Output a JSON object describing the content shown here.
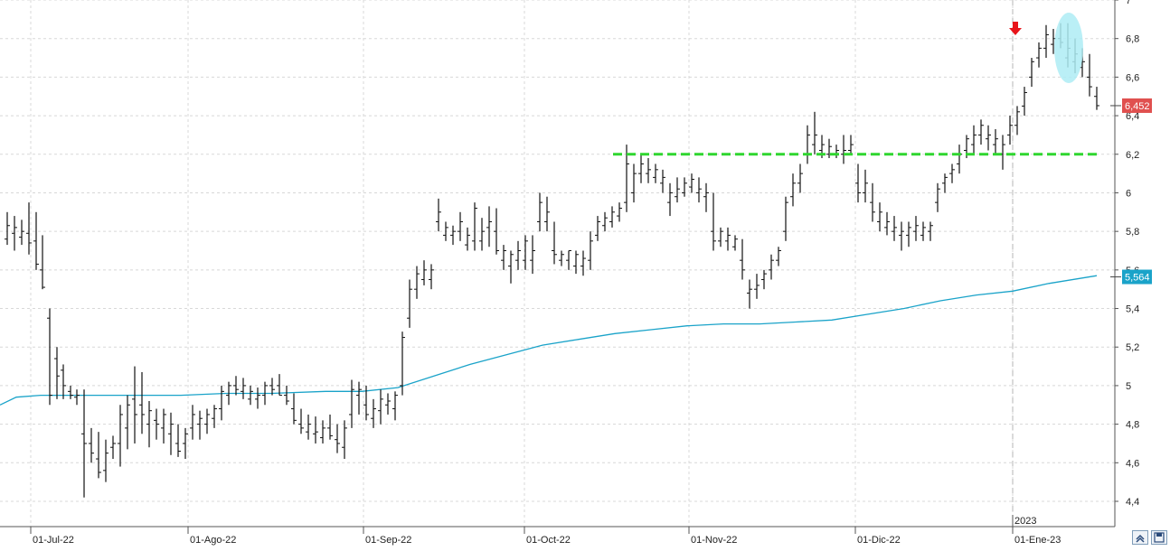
{
  "chart_data": {
    "type": "ohlc",
    "year_marker": "2023",
    "x_tick_labels": [
      "01-Jul-22",
      "01-Ago-22",
      "01-Sep-22",
      "01-Oct-22",
      "01-Nov-22",
      "01-Dic-22",
      "01-Ene-23"
    ],
    "y_tick_labels": [
      "4,4",
      "4,6",
      "4,8",
      "5",
      "5,2",
      "5,4",
      "5,6",
      "5,8",
      "6",
      "6,2",
      "6,4",
      "6,6",
      "6,8",
      "7"
    ],
    "ylim": [
      4.3,
      7.0
    ],
    "grid": true,
    "last_price": {
      "label": "6,452",
      "value": 6.452,
      "color": "#e0504f"
    },
    "moving_average": {
      "label": "5,564",
      "value": 5.564,
      "color": "#1aa3c9",
      "points": [
        [
          0,
          4.9
        ],
        [
          18,
          4.94
        ],
        [
          45,
          4.95
        ],
        [
          90,
          4.95
        ],
        [
          140,
          4.95
        ],
        [
          200,
          4.95
        ],
        [
          250,
          4.96
        ],
        [
          300,
          4.96
        ],
        [
          360,
          4.97
        ],
        [
          400,
          4.97
        ],
        [
          440,
          4.99
        ],
        [
          480,
          5.05
        ],
        [
          520,
          5.11
        ],
        [
          560,
          5.16
        ],
        [
          600,
          5.21
        ],
        [
          640,
          5.24
        ],
        [
          680,
          5.27
        ],
        [
          720,
          5.29
        ],
        [
          760,
          5.31
        ],
        [
          800,
          5.32
        ],
        [
          840,
          5.32
        ],
        [
          880,
          5.33
        ],
        [
          920,
          5.34
        ],
        [
          960,
          5.37
        ],
        [
          1000,
          5.4
        ],
        [
          1040,
          5.44
        ],
        [
          1080,
          5.47
        ],
        [
          1120,
          5.49
        ],
        [
          1160,
          5.53
        ],
        [
          1213,
          5.57
        ]
      ]
    },
    "resistance_line": {
      "value": 6.2,
      "x_start": 678,
      "x_end": 1214,
      "color": "#2fd62f"
    },
    "highlight_ellipse": {
      "color": "#aeecf5"
    },
    "marker_arrow": {
      "color": "#e8141a"
    },
    "bars": [
      [
        8,
        5.9,
        5.73,
        5.76,
        5.83
      ],
      [
        16,
        5.88,
        5.7,
        5.79,
        5.82
      ],
      [
        24,
        5.86,
        5.73,
        5.77,
        5.8
      ],
      [
        32,
        5.95,
        5.68,
        5.79,
        5.74
      ],
      [
        40,
        5.9,
        5.6,
        5.75,
        5.63
      ],
      [
        47,
        5.78,
        5.5,
        5.6,
        5.51
      ],
      [
        55,
        5.4,
        4.9,
        5.35,
        4.95
      ],
      [
        63,
        5.2,
        4.93,
        5.14,
        5.05
      ],
      [
        70,
        5.11,
        4.93,
        5.08,
        5.0
      ],
      [
        78,
        5.0,
        4.93,
        4.97,
        4.95
      ],
      [
        85,
        4.98,
        4.9,
        4.94,
        4.95
      ],
      [
        93,
        4.98,
        4.42,
        4.75,
        4.7
      ],
      [
        101,
        4.78,
        4.6,
        4.7,
        4.65
      ],
      [
        109,
        4.76,
        4.52,
        4.62,
        4.55
      ],
      [
        117,
        4.72,
        4.5,
        4.56,
        4.65
      ],
      [
        125,
        4.74,
        4.62,
        4.68,
        4.7
      ],
      [
        133,
        4.9,
        4.58,
        4.7,
        4.85
      ],
      [
        141,
        4.95,
        4.67,
        4.78,
        4.9
      ],
      [
        149,
        5.1,
        4.7,
        4.93,
        4.85
      ],
      [
        157,
        5.07,
        4.75,
        4.9,
        4.85
      ],
      [
        165,
        4.92,
        4.68,
        4.8,
        4.87
      ],
      [
        173,
        4.88,
        4.72,
        4.82,
        4.8
      ],
      [
        181,
        4.88,
        4.7,
        4.78,
        4.85
      ],
      [
        189,
        4.86,
        4.64,
        4.75,
        4.8
      ],
      [
        197,
        4.8,
        4.63,
        4.7,
        4.66
      ],
      [
        205,
        4.78,
        4.62,
        4.7,
        4.75
      ],
      [
        213,
        4.9,
        4.72,
        4.78,
        4.85
      ],
      [
        221,
        4.87,
        4.72,
        4.8,
        4.83
      ],
      [
        229,
        4.88,
        4.75,
        4.8,
        4.85
      ],
      [
        237,
        4.9,
        4.78,
        4.83,
        4.88
      ],
      [
        245,
        5.0,
        4.82,
        4.88,
        4.97
      ],
      [
        253,
        5.02,
        4.9,
        4.95,
        5.0
      ],
      [
        261,
        5.05,
        4.95,
        5.0,
        4.98
      ],
      [
        269,
        5.04,
        4.93,
        4.97,
        5.0
      ],
      [
        277,
        5.0,
        4.9,
        4.93,
        4.97
      ],
      [
        285,
        4.99,
        4.88,
        4.93,
        4.95
      ],
      [
        293,
        5.02,
        4.9,
        4.95,
        5.0
      ],
      [
        301,
        5.04,
        4.95,
        5.0,
        4.98
      ],
      [
        309,
        5.06,
        4.95,
        5.0,
        4.95
      ],
      [
        317,
        5.0,
        4.9,
        4.95,
        4.92
      ],
      [
        325,
        4.96,
        4.8,
        4.88,
        4.82
      ],
      [
        333,
        4.88,
        4.75,
        4.8,
        4.78
      ],
      [
        341,
        4.85,
        4.72,
        4.76,
        4.8
      ],
      [
        349,
        4.84,
        4.7,
        4.75,
        4.76
      ],
      [
        357,
        4.82,
        4.7,
        4.73,
        4.78
      ],
      [
        365,
        4.85,
        4.72,
        4.78,
        4.74
      ],
      [
        373,
        4.8,
        4.65,
        4.72,
        4.7
      ],
      [
        381,
        4.82,
        4.62,
        4.68,
        4.78
      ],
      [
        389,
        5.03,
        4.78,
        4.85,
        4.98
      ],
      [
        397,
        5.02,
        4.85,
        4.95,
        4.98
      ],
      [
        405,
        5.0,
        4.82,
        4.9,
        4.85
      ],
      [
        413,
        4.93,
        4.78,
        4.83,
        4.88
      ],
      [
        421,
        4.98,
        4.8,
        4.87,
        4.93
      ],
      [
        429,
        4.96,
        4.85,
        4.9,
        4.92
      ],
      [
        437,
        4.97,
        4.82,
        4.88,
        4.95
      ],
      [
        445,
        5.28,
        4.95,
        5.0,
        5.25
      ],
      [
        453,
        5.55,
        5.3,
        5.35,
        5.5
      ],
      [
        461,
        5.62,
        5.45,
        5.5,
        5.58
      ],
      [
        469,
        5.65,
        5.52,
        5.55,
        5.6
      ],
      [
        477,
        5.63,
        5.5,
        5.55,
        5.6
      ],
      [
        485,
        5.97,
        5.8,
        5.85,
        5.9
      ],
      [
        493,
        5.85,
        5.75,
        5.78,
        5.82
      ],
      [
        501,
        5.83,
        5.73,
        5.78,
        5.8
      ],
      [
        509,
        5.9,
        5.75,
        5.8,
        5.85
      ],
      [
        517,
        5.82,
        5.7,
        5.73,
        5.78
      ],
      [
        525,
        5.95,
        5.7,
        5.75,
        5.92
      ],
      [
        533,
        5.87,
        5.7,
        5.75,
        5.8
      ],
      [
        541,
        5.93,
        5.72,
        5.82,
        5.85
      ],
      [
        549,
        5.92,
        5.68,
        5.8,
        5.7
      ],
      [
        557,
        5.73,
        5.6,
        5.65,
        5.7
      ],
      [
        565,
        5.7,
        5.53,
        5.62,
        5.68
      ],
      [
        573,
        5.75,
        5.6,
        5.65,
        5.7
      ],
      [
        581,
        5.78,
        5.6,
        5.65,
        5.75
      ],
      [
        589,
        5.78,
        5.58,
        5.65,
        5.7
      ],
      [
        597,
        6.0,
        5.8,
        5.85,
        5.95
      ],
      [
        605,
        5.98,
        5.8,
        5.85,
        5.9
      ],
      [
        613,
        5.85,
        5.63,
        5.7,
        5.68
      ],
      [
        621,
        5.7,
        5.62,
        5.65,
        5.68
      ],
      [
        629,
        5.7,
        5.6,
        5.65,
        5.7
      ],
      [
        637,
        5.7,
        5.58,
        5.62,
        5.68
      ],
      [
        645,
        5.7,
        5.57,
        5.62,
        5.66
      ],
      [
        653,
        5.8,
        5.6,
        5.65,
        5.75
      ],
      [
        661,
        5.88,
        5.75,
        5.78,
        5.85
      ],
      [
        669,
        5.9,
        5.8,
        5.83,
        5.87
      ],
      [
        677,
        5.93,
        5.82,
        5.85,
        5.9
      ],
      [
        685,
        5.95,
        5.85,
        5.88,
        5.92
      ],
      [
        693,
        6.25,
        5.9,
        5.95,
        6.15
      ],
      [
        701,
        6.15,
        5.95,
        6.0,
        6.1
      ],
      [
        709,
        6.2,
        6.05,
        6.1,
        6.15
      ],
      [
        717,
        6.18,
        6.05,
        6.1,
        6.12
      ],
      [
        725,
        6.15,
        6.05,
        6.08,
        6.12
      ],
      [
        733,
        6.12,
        6.0,
        6.05,
        6.08
      ],
      [
        741,
        6.05,
        5.88,
        5.95,
        6.0
      ],
      [
        749,
        6.08,
        5.95,
        5.98,
        6.02
      ],
      [
        757,
        6.08,
        5.98,
        6.0,
        6.05
      ],
      [
        765,
        6.1,
        6.0,
        6.03,
        6.07
      ],
      [
        773,
        6.08,
        5.95,
        6.0,
        6.02
      ],
      [
        781,
        6.05,
        5.9,
        5.98,
        6.0
      ],
      [
        789,
        6.0,
        5.7,
        5.8,
        5.75
      ],
      [
        797,
        5.82,
        5.72,
        5.75,
        5.8
      ],
      [
        805,
        5.82,
        5.7,
        5.75,
        5.78
      ],
      [
        813,
        5.78,
        5.7,
        5.72,
        5.76
      ],
      [
        821,
        5.76,
        5.55,
        5.65,
        5.6
      ],
      [
        829,
        5.55,
        5.4,
        5.48,
        5.5
      ],
      [
        837,
        5.58,
        5.45,
        5.5,
        5.52
      ],
      [
        845,
        5.6,
        5.5,
        5.55,
        5.58
      ],
      [
        853,
        5.68,
        5.55,
        5.6,
        5.65
      ],
      [
        861,
        5.72,
        5.62,
        5.65,
        5.7
      ],
      [
        869,
        5.98,
        5.75,
        5.8,
        5.95
      ],
      [
        877,
        6.1,
        5.93,
        5.98,
        6.05
      ],
      [
        885,
        6.15,
        6.0,
        6.05,
        6.1
      ],
      [
        893,
        6.35,
        6.15,
        6.2,
        6.3
      ],
      [
        901,
        6.42,
        6.2,
        6.25,
        6.3
      ],
      [
        909,
        6.3,
        6.18,
        6.22,
        6.25
      ],
      [
        917,
        6.28,
        6.18,
        6.2,
        6.24
      ],
      [
        925,
        6.25,
        6.18,
        6.2,
        6.22
      ],
      [
        933,
        6.3,
        6.15,
        6.2,
        6.22
      ],
      [
        941,
        6.3,
        6.2,
        6.22,
        6.25
      ],
      [
        949,
        6.15,
        5.95,
        6.05,
        6.0
      ],
      [
        957,
        6.12,
        5.95,
        6.0,
        6.05
      ],
      [
        965,
        6.05,
        5.85,
        5.95,
        5.9
      ],
      [
        973,
        5.95,
        5.8,
        5.85,
        5.9
      ],
      [
        981,
        5.9,
        5.78,
        5.82,
        5.85
      ],
      [
        989,
        5.88,
        5.75,
        5.8,
        5.82
      ],
      [
        997,
        5.85,
        5.7,
        5.78,
        5.8
      ],
      [
        1005,
        5.85,
        5.72,
        5.78,
        5.82
      ],
      [
        1013,
        5.88,
        5.75,
        5.8,
        5.83
      ],
      [
        1021,
        5.85,
        5.75,
        5.78,
        5.82
      ],
      [
        1029,
        5.85,
        5.75,
        5.8,
        5.83
      ],
      [
        1037,
        6.05,
        5.9,
        5.95,
        6.02
      ],
      [
        1045,
        6.1,
        6.0,
        6.05,
        6.08
      ],
      [
        1053,
        6.15,
        6.05,
        6.1,
        6.12
      ],
      [
        1061,
        6.25,
        6.1,
        6.15,
        6.2
      ],
      [
        1069,
        6.3,
        6.18,
        6.22,
        6.28
      ],
      [
        1077,
        6.35,
        6.2,
        6.25,
        6.3
      ],
      [
        1085,
        6.38,
        6.25,
        6.3,
        6.35
      ],
      [
        1093,
        6.35,
        6.22,
        6.28,
        6.3
      ],
      [
        1101,
        6.33,
        6.2,
        6.25,
        6.28
      ],
      [
        1109,
        6.3,
        6.12,
        6.2,
        6.25
      ],
      [
        1117,
        6.4,
        6.25,
        6.3,
        6.35
      ],
      [
        1125,
        6.45,
        6.3,
        6.35,
        6.42
      ],
      [
        1133,
        6.55,
        6.4,
        6.45,
        6.52
      ],
      [
        1141,
        6.7,
        6.55,
        6.6,
        6.68
      ],
      [
        1149,
        6.78,
        6.65,
        6.7,
        6.75
      ],
      [
        1157,
        6.87,
        6.7,
        6.75,
        6.82
      ],
      [
        1165,
        6.85,
        6.72,
        6.77,
        6.8
      ],
      [
        1173,
        6.88,
        6.75,
        6.8,
        6.78
      ],
      [
        1181,
        6.88,
        6.65,
        6.7,
        6.75
      ],
      [
        1189,
        6.8,
        6.62,
        6.68,
        6.72
      ],
      [
        1197,
        6.75,
        6.6,
        6.65,
        6.68
      ],
      [
        1205,
        6.72,
        6.5,
        6.6,
        6.55
      ],
      [
        1213,
        6.55,
        6.43,
        6.5,
        6.452
      ]
    ]
  },
  "toolbar": {
    "scroll_left_icon": "scroll-left-icon",
    "save_icon": "save-icon"
  }
}
